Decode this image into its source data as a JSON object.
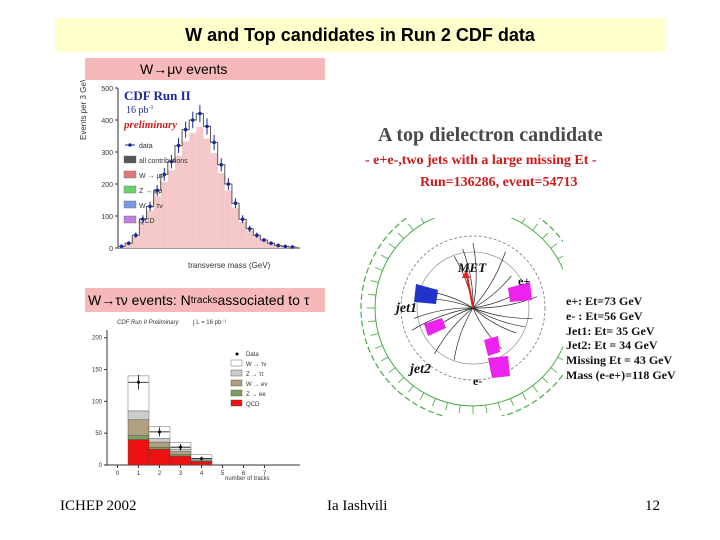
{
  "slide": {
    "title": "W and Top candidates in Run 2 CDF data",
    "footer_left": "ICHEP 2002",
    "footer_center": "Ia Iashvili",
    "footer_right": "12"
  },
  "labels": {
    "w_mu_nu": "W→μν events",
    "w_tau_nu_prefix": "W→τν events: N",
    "w_tau_nu_sub": "tracks",
    "w_tau_nu_suffix": " associated to τ"
  },
  "plot1": {
    "title": "CDF Run II",
    "lumi": "16 pb",
    "lumi_sup": "-1",
    "status": "preliminary",
    "ylabel": "Events per 3 GeV",
    "xlabel": "transverse mass (GeV)",
    "yticks": [
      "0",
      "100",
      "200",
      "300",
      "400",
      "500"
    ],
    "legend": [
      "data",
      "all contributions",
      "W → μν",
      "Z → μμ",
      "W → τν",
      "QCD"
    ],
    "colors": {
      "data": "#1a2a9a",
      "total": "#555555",
      "wmunu": "#e07a7a",
      "zmumu": "#6bd06b",
      "wtaunu": "#7a9ae0",
      "qcd": "#c080e0"
    }
  },
  "plot2": {
    "title": "CDF Run II Preliminary",
    "lumi": "∫ L = 16 pb⁻¹",
    "xlabel": "number of tracks",
    "xticks": [
      "0",
      "1",
      "2",
      "3",
      "4",
      "5",
      "6",
      "7"
    ],
    "yticks": [
      "0",
      "50",
      "100",
      "150",
      "200"
    ],
    "legend": [
      "Data",
      "W → τν",
      "Z → ττ",
      "W → eν",
      "Z → ee",
      "QCD"
    ],
    "colors": {
      "data": "#000000",
      "wtaunu": "#ffffff",
      "ztautau": "#cccccc",
      "wenu": "#b0a080",
      "zee": "#7aa060",
      "qcd": "#ee1111"
    }
  },
  "chart_data": [
    {
      "type": "bar",
      "title": "CDF Run II",
      "xlabel": "transverse mass (GeV)",
      "ylabel": "Events per 3 GeV",
      "series": [
        {
          "name": "data",
          "values": [
            5,
            15,
            40,
            90,
            130,
            180,
            230,
            270,
            320,
            370,
            400,
            420,
            380,
            330,
            260,
            200,
            140,
            90,
            60,
            40,
            25,
            15,
            8,
            5,
            3
          ]
        }
      ]
    },
    {
      "type": "bar",
      "title": "CDF Run II Preliminary",
      "xlabel": "number of tracks",
      "categories": [
        "1",
        "2",
        "3",
        "4",
        "5",
        "6"
      ],
      "series": [
        {
          "name": "QCD",
          "values": [
            40,
            25,
            14,
            5,
            0,
            0
          ]
        },
        {
          "name": "Z → ee",
          "values": [
            6,
            3,
            2,
            1,
            0,
            0
          ]
        },
        {
          "name": "W → eν",
          "values": [
            25,
            8,
            5,
            2,
            0,
            0
          ]
        },
        {
          "name": "Z → ττ",
          "values": [
            14,
            6,
            4,
            2,
            0,
            0
          ]
        },
        {
          "name": "W → τν",
          "values": [
            55,
            18,
            10,
            6,
            0,
            0
          ]
        },
        {
          "name": "Data",
          "values": [
            130,
            52,
            28,
            10,
            0,
            0
          ]
        }
      ]
    }
  ],
  "event": {
    "title": "A top dielectron candidate",
    "subtitle": "- e+e-,two jets with a large missing Et -",
    "run": "Run=136286, event=54713",
    "labels": {
      "met": "MET",
      "jet1": "jet1",
      "jet2": "jet2",
      "eplus": "e+",
      "eminus": "e-"
    },
    "info": [
      "e+: Et=73 GeV",
      "e- : Et=56 GeV",
      "Jet1: Et= 35 GeV",
      "Jet2: Et = 34 GeV",
      "Missing Et = 43 GeV",
      "Mass (e-e+)=118 GeV"
    ],
    "colors": {
      "ring": "#44aa44",
      "track": "#222222",
      "em": "#ee22ee",
      "blue": "#2233cc",
      "red": "#dd2222"
    }
  }
}
